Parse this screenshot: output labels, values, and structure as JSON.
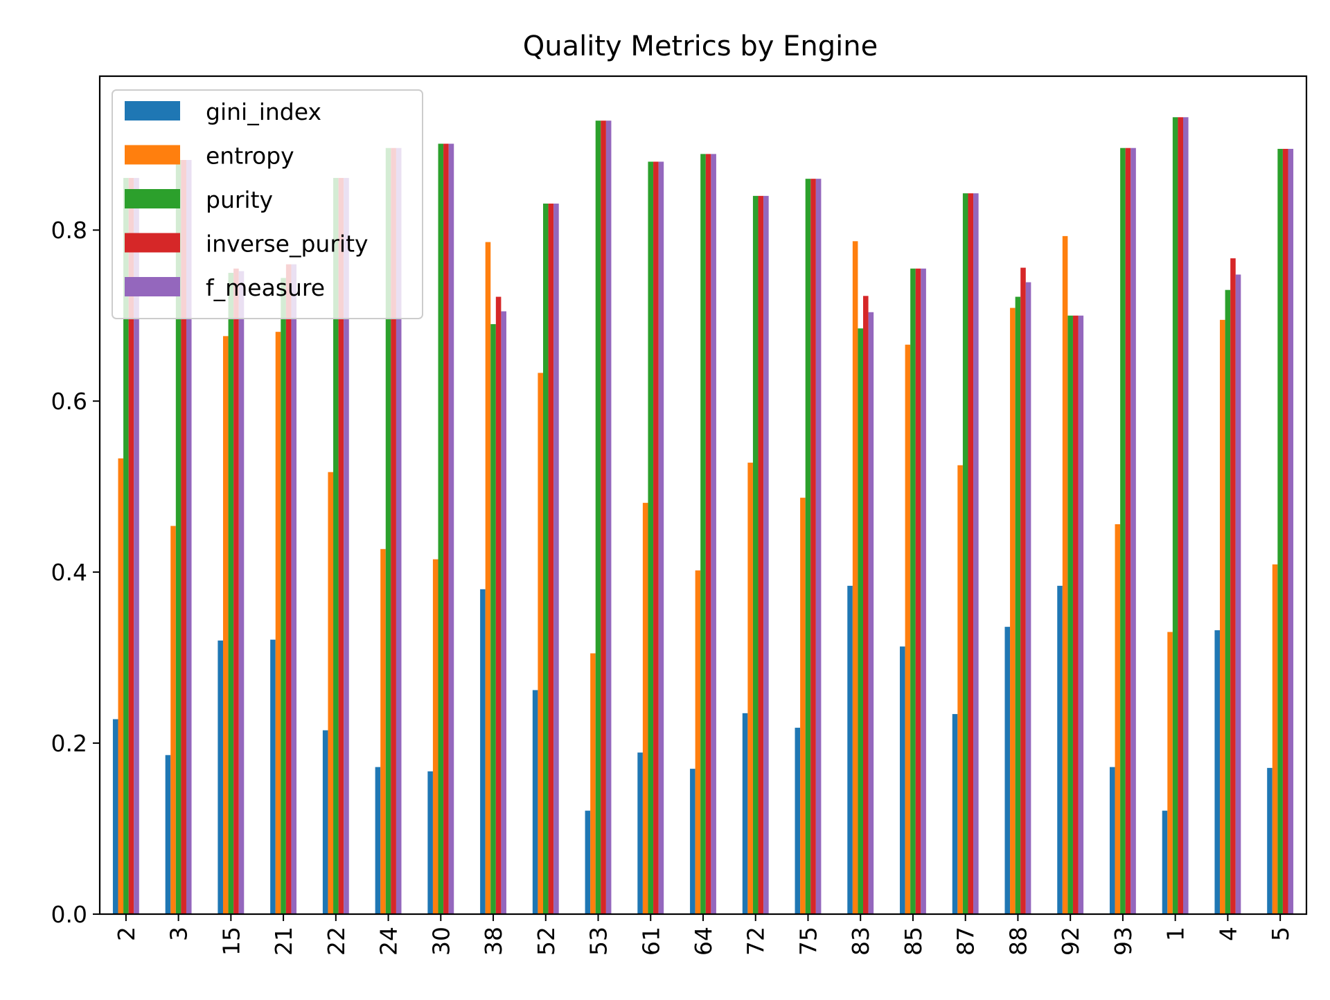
{
  "chart_data": {
    "type": "bar",
    "title": "Quality Metrics by Engine",
    "xlabel": "",
    "ylabel": "",
    "ylim": [
      0,
      0.98
    ],
    "yticks": [
      0.0,
      0.2,
      0.4,
      0.6,
      0.8
    ],
    "ytick_labels": [
      "0.0",
      "0.2",
      "0.4",
      "0.6",
      "0.8"
    ],
    "grid": false,
    "legend_position": "upper-left",
    "categories": [
      "2",
      "3",
      "15",
      "21",
      "22",
      "24",
      "30",
      "38",
      "52",
      "53",
      "61",
      "64",
      "72",
      "75",
      "83",
      "85",
      "87",
      "88",
      "92",
      "93",
      "1",
      "4",
      "5"
    ],
    "series": [
      {
        "name": "gini_index",
        "color": "#1f77b4",
        "values": [
          0.228,
          0.186,
          0.32,
          0.321,
          0.215,
          0.172,
          0.167,
          0.38,
          0.262,
          0.121,
          0.189,
          0.17,
          0.235,
          0.218,
          0.384,
          0.313,
          0.234,
          0.336,
          0.384,
          0.172,
          0.121,
          0.332,
          0.171
        ]
      },
      {
        "name": "entropy",
        "color": "#ff7f0e",
        "values": [
          0.533,
          0.454,
          0.676,
          0.681,
          0.517,
          0.427,
          0.415,
          0.786,
          0.633,
          0.305,
          0.481,
          0.402,
          0.528,
          0.487,
          0.787,
          0.666,
          0.525,
          0.709,
          0.793,
          0.456,
          0.33,
          0.695,
          0.409
        ]
      },
      {
        "name": "purity",
        "color": "#2ca02c",
        "values": [
          0.861,
          0.882,
          0.75,
          0.744,
          0.861,
          0.896,
          0.901,
          0.69,
          0.831,
          0.928,
          0.88,
          0.889,
          0.84,
          0.86,
          0.685,
          0.755,
          0.843,
          0.722,
          0.7,
          0.896,
          0.932,
          0.73,
          0.895
        ]
      },
      {
        "name": "inverse_purity",
        "color": "#d62728",
        "values": [
          0.861,
          0.882,
          0.755,
          0.76,
          0.861,
          0.896,
          0.901,
          0.722,
          0.831,
          0.928,
          0.88,
          0.889,
          0.84,
          0.86,
          0.723,
          0.755,
          0.843,
          0.756,
          0.7,
          0.896,
          0.932,
          0.767,
          0.895
        ]
      },
      {
        "name": "f_measure",
        "color": "#9467bd",
        "values": [
          0.861,
          0.882,
          0.752,
          0.76,
          0.861,
          0.896,
          0.901,
          0.705,
          0.831,
          0.928,
          0.88,
          0.889,
          0.84,
          0.86,
          0.704,
          0.755,
          0.843,
          0.739,
          0.7,
          0.896,
          0.932,
          0.748,
          0.895
        ]
      }
    ]
  }
}
